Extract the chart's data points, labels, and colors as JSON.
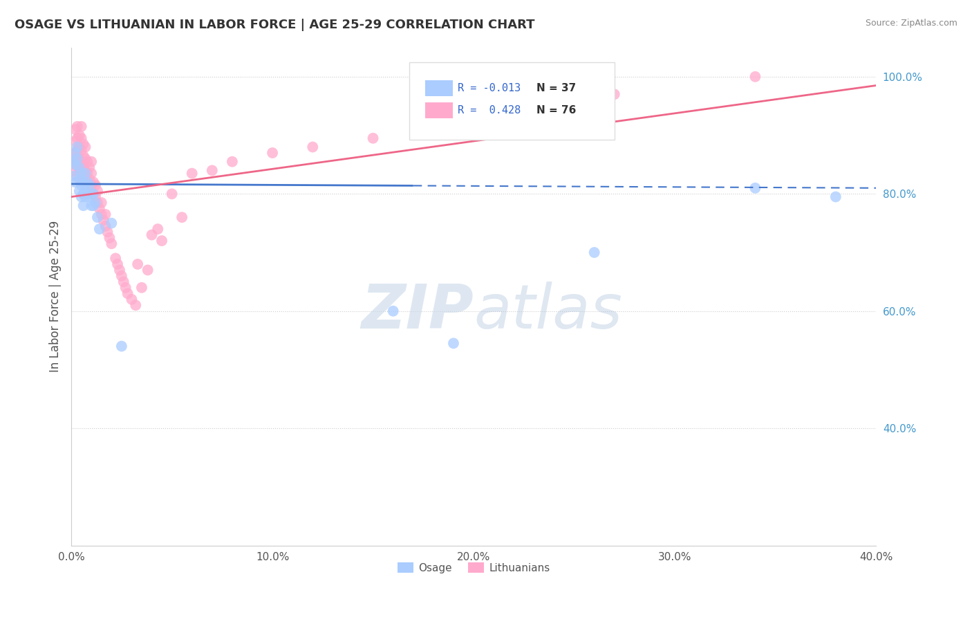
{
  "title": "OSAGE VS LITHUANIAN IN LABOR FORCE | AGE 25-29 CORRELATION CHART",
  "source_text": "Source: ZipAtlas.com",
  "ylabel": "In Labor Force | Age 25-29",
  "xlim": [
    0.0,
    0.4
  ],
  "ylim": [
    0.2,
    1.05
  ],
  "xtick_labels": [
    "0.0%",
    "10.0%",
    "20.0%",
    "30.0%",
    "40.0%"
  ],
  "xtick_vals": [
    0.0,
    0.1,
    0.2,
    0.3,
    0.4
  ],
  "ytick_labels": [
    "40.0%",
    "60.0%",
    "80.0%",
    "100.0%"
  ],
  "ytick_vals": [
    0.4,
    0.6,
    0.8,
    1.0
  ],
  "grid_color": "#cccccc",
  "background_color": "#ffffff",
  "osage_color": "#aaccff",
  "lithuanian_color": "#ffaacc",
  "osage_line_color": "#4477cc",
  "lithuanian_line_color": "#ee6688",
  "legend_R_osage": "-0.013",
  "legend_N_osage": "37",
  "legend_R_lith": "0.428",
  "legend_N_lith": "76",
  "osage_x": [
    0.001,
    0.001,
    0.002,
    0.002,
    0.002,
    0.003,
    0.003,
    0.004,
    0.004,
    0.004,
    0.005,
    0.005,
    0.005,
    0.006,
    0.006,
    0.006,
    0.007,
    0.007,
    0.007,
    0.008,
    0.008,
    0.009,
    0.009,
    0.01,
    0.01,
    0.011,
    0.011,
    0.012,
    0.013,
    0.014,
    0.02,
    0.025,
    0.16,
    0.19,
    0.26,
    0.34,
    0.38
  ],
  "osage_y": [
    0.855,
    0.83,
    0.87,
    0.85,
    0.82,
    0.88,
    0.86,
    0.845,
    0.825,
    0.805,
    0.835,
    0.815,
    0.795,
    0.82,
    0.8,
    0.78,
    0.835,
    0.815,
    0.795,
    0.82,
    0.8,
    0.815,
    0.795,
    0.8,
    0.78,
    0.8,
    0.78,
    0.785,
    0.76,
    0.74,
    0.75,
    0.54,
    0.6,
    0.545,
    0.7,
    0.81,
    0.795
  ],
  "lith_x": [
    0.001,
    0.001,
    0.002,
    0.002,
    0.002,
    0.002,
    0.003,
    0.003,
    0.003,
    0.003,
    0.003,
    0.004,
    0.004,
    0.004,
    0.004,
    0.005,
    0.005,
    0.005,
    0.005,
    0.005,
    0.006,
    0.006,
    0.006,
    0.006,
    0.007,
    0.007,
    0.007,
    0.008,
    0.008,
    0.009,
    0.009,
    0.01,
    0.01,
    0.01,
    0.011,
    0.011,
    0.012,
    0.012,
    0.013,
    0.013,
    0.014,
    0.015,
    0.015,
    0.016,
    0.017,
    0.017,
    0.018,
    0.019,
    0.02,
    0.022,
    0.023,
    0.024,
    0.025,
    0.026,
    0.027,
    0.028,
    0.03,
    0.032,
    0.033,
    0.035,
    0.038,
    0.04,
    0.043,
    0.045,
    0.05,
    0.055,
    0.06,
    0.07,
    0.08,
    0.1,
    0.12,
    0.15,
    0.18,
    0.22,
    0.27,
    0.34
  ],
  "lith_y": [
    0.84,
    0.86,
    0.87,
    0.89,
    0.85,
    0.91,
    0.83,
    0.855,
    0.875,
    0.895,
    0.915,
    0.84,
    0.86,
    0.88,
    0.9,
    0.835,
    0.855,
    0.875,
    0.895,
    0.915,
    0.825,
    0.845,
    0.865,
    0.885,
    0.84,
    0.86,
    0.88,
    0.835,
    0.855,
    0.825,
    0.845,
    0.815,
    0.835,
    0.855,
    0.8,
    0.82,
    0.795,
    0.815,
    0.785,
    0.805,
    0.775,
    0.765,
    0.785,
    0.755,
    0.745,
    0.765,
    0.735,
    0.725,
    0.715,
    0.69,
    0.68,
    0.67,
    0.66,
    0.65,
    0.64,
    0.63,
    0.62,
    0.61,
    0.68,
    0.64,
    0.67,
    0.73,
    0.74,
    0.72,
    0.8,
    0.76,
    0.835,
    0.84,
    0.855,
    0.87,
    0.88,
    0.895,
    0.91,
    0.94,
    0.97,
    1.0
  ],
  "osage_trend_y0": 0.817,
  "osage_trend_y1": 0.81,
  "lith_trend_y0": 0.795,
  "lith_trend_y1": 0.985
}
